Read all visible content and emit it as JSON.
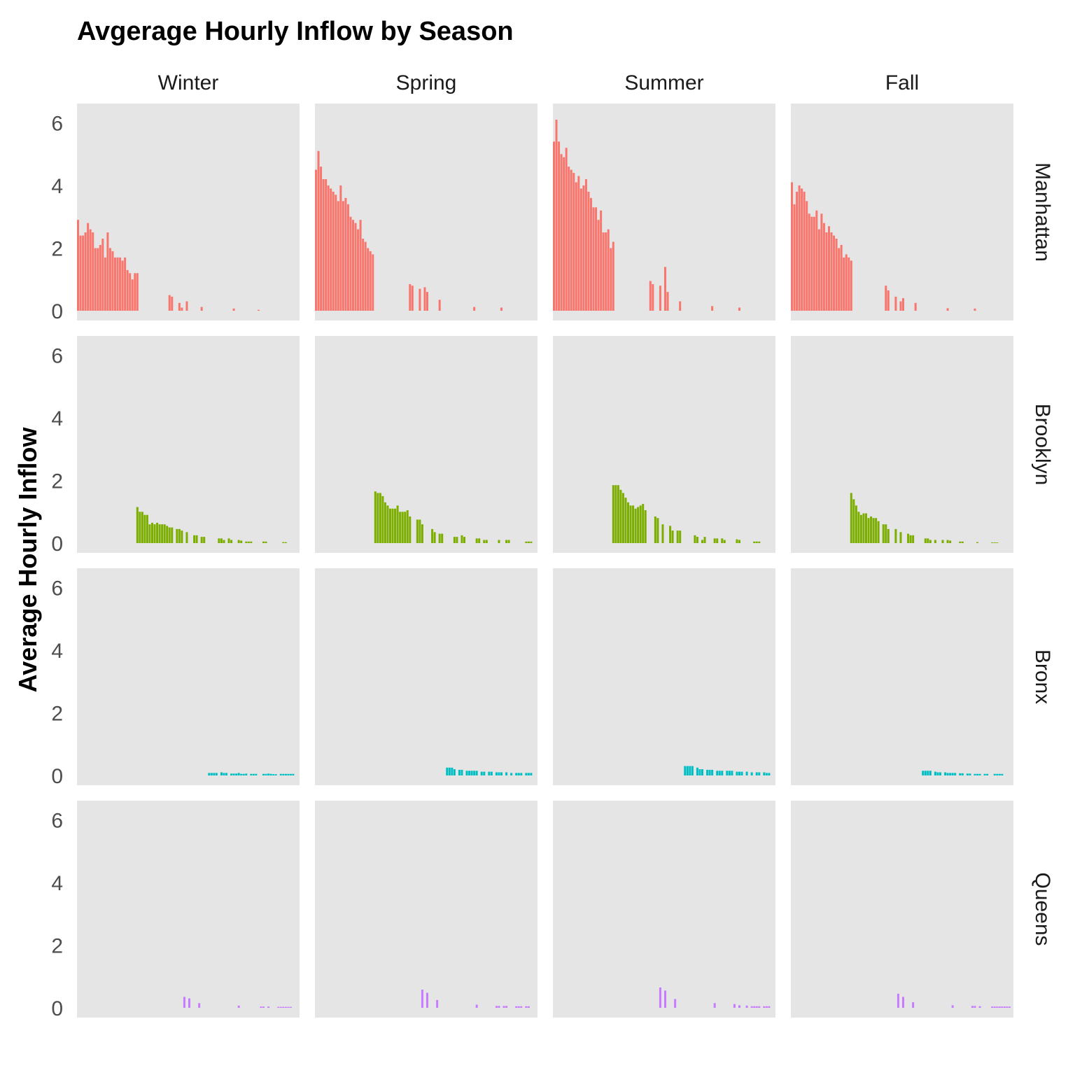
{
  "chart_data": {
    "type": "bar",
    "title": "Avgerage Hourly Inflow by Season",
    "xlabel": "",
    "ylabel": "Average Hourly Inflow",
    "ylim": [
      0,
      6.3
    ],
    "yticks": [
      0,
      2,
      4,
      6
    ],
    "grid": false,
    "legend": "none",
    "column_facets": [
      "Winter",
      "Spring",
      "Summer",
      "Fall"
    ],
    "row_facets": [
      "Manhattan",
      "Brooklyn",
      "Bronx",
      "Queens"
    ],
    "colors": {
      "Manhattan": "#F8766D",
      "Brooklyn": "#7CAE00",
      "Bronx": "#00BFC4",
      "Queens": "#C77CFF",
      "panel_background": "#E5E5E5"
    },
    "x_slots": 90,
    "panels": [
      {
        "row": "Manhattan",
        "col": "Winter",
        "start": 0,
        "values": [
          2.9,
          2.4,
          2.4,
          2.5,
          2.8,
          2.6,
          2.5,
          2.0,
          2.0,
          2.1,
          2.3,
          1.7,
          2.5,
          2.0,
          1.9,
          1.7,
          1.7,
          1.7,
          1.6,
          1.7,
          1.3,
          1.2,
          1.0,
          1.2,
          1.2,
          0,
          0,
          0,
          0,
          0,
          0,
          0,
          0,
          0,
          0,
          0,
          0,
          0.5,
          0.45,
          0,
          0,
          0.25,
          0.1,
          0,
          0.3,
          0,
          0,
          0,
          0,
          0,
          0.12,
          0,
          0,
          0,
          0,
          0,
          0,
          0,
          0,
          0,
          0,
          0,
          0,
          0.07,
          0,
          0,
          0,
          0,
          0,
          0,
          0,
          0,
          0,
          0.03
        ]
      },
      {
        "row": "Manhattan",
        "col": "Spring",
        "start": 0,
        "values": [
          4.5,
          5.1,
          4.6,
          4.2,
          4.2,
          4.0,
          3.9,
          3.8,
          3.7,
          3.5,
          4.0,
          3.5,
          3.6,
          3.4,
          3.0,
          2.9,
          2.8,
          2.6,
          2.9,
          2.3,
          2.2,
          2.0,
          1.9,
          1.8,
          0,
          0,
          0,
          0,
          0,
          0,
          0,
          0,
          0,
          0,
          0,
          0,
          0,
          0,
          0.85,
          0.8,
          0,
          0,
          0.7,
          0,
          0.75,
          0.6,
          0,
          0,
          0,
          0,
          0.35,
          0,
          0,
          0,
          0,
          0,
          0,
          0,
          0,
          0,
          0,
          0,
          0,
          0,
          0.12,
          0,
          0,
          0,
          0,
          0,
          0,
          0,
          0,
          0,
          0,
          0.1
        ]
      },
      {
        "row": "Manhattan",
        "col": "Summer",
        "start": 0,
        "values": [
          5.4,
          6.1,
          5.4,
          5.0,
          4.9,
          5.2,
          4.6,
          4.5,
          4.4,
          4.1,
          4.3,
          3.9,
          4.0,
          4.2,
          3.8,
          3.6,
          3.3,
          3.3,
          2.9,
          3.2,
          2.5,
          2.5,
          2.6,
          2.0,
          2.2,
          0,
          0,
          0,
          0,
          0,
          0,
          0,
          0,
          0,
          0,
          0,
          0,
          0,
          0,
          0.95,
          0.85,
          0,
          0,
          0.8,
          0,
          1.4,
          0.6,
          0,
          0,
          0,
          0,
          0.3,
          0,
          0,
          0,
          0,
          0,
          0,
          0,
          0,
          0,
          0,
          0,
          0,
          0.15,
          0,
          0,
          0,
          0,
          0,
          0,
          0,
          0,
          0,
          0,
          0.1
        ]
      },
      {
        "row": "Manhattan",
        "col": "Fall",
        "start": 0,
        "values": [
          4.1,
          3.4,
          3.8,
          4.0,
          3.9,
          3.8,
          3.5,
          3.1,
          3.0,
          3.0,
          3.2,
          2.6,
          3.1,
          2.8,
          2.5,
          2.7,
          2.5,
          2.4,
          2.3,
          2.0,
          2.1,
          1.7,
          1.8,
          1.7,
          1.6,
          0,
          0,
          0,
          0,
          0,
          0,
          0,
          0,
          0,
          0,
          0,
          0,
          0,
          0.8,
          0.65,
          0,
          0,
          0.45,
          0,
          0.3,
          0.4,
          0,
          0,
          0,
          0,
          0.25,
          0,
          0,
          0,
          0,
          0,
          0,
          0,
          0,
          0,
          0,
          0,
          0,
          0.08,
          0,
          0,
          0,
          0,
          0,
          0,
          0,
          0,
          0,
          0,
          0.07
        ]
      },
      {
        "row": "Brooklyn",
        "col": "Winter",
        "start": 24,
        "values": [
          1.15,
          1.0,
          1.0,
          0.9,
          0.9,
          0.6,
          0.65,
          0.6,
          0.65,
          0.6,
          0.6,
          0.6,
          0.55,
          0.5,
          0.5,
          0,
          0.45,
          0.45,
          0.4,
          0,
          0.35,
          0,
          0,
          0.25,
          0.25,
          0,
          0.2,
          0.2,
          0,
          0,
          0,
          0,
          0,
          0.15,
          0.15,
          0.1,
          0,
          0.15,
          0.1,
          0,
          0,
          0.1,
          0.08,
          0,
          0.05,
          0.05,
          0.05,
          0,
          0,
          0,
          0,
          0.05,
          0.05,
          0,
          0,
          0,
          0,
          0,
          0,
          0.03,
          0.03,
          0,
          0,
          0,
          0,
          0
        ]
      },
      {
        "row": "Brooklyn",
        "col": "Spring",
        "start": 24,
        "values": [
          1.65,
          1.6,
          1.6,
          1.5,
          1.3,
          1.2,
          1.1,
          1.1,
          1.1,
          1.2,
          1.0,
          1.0,
          1.0,
          1.05,
          0.85,
          0,
          0,
          0.75,
          0.75,
          0.6,
          0,
          0,
          0,
          0.45,
          0.35,
          0,
          0.3,
          0.3,
          0,
          0,
          0,
          0,
          0.2,
          0.2,
          0,
          0.25,
          0.2,
          0,
          0,
          0,
          0,
          0.15,
          0.15,
          0,
          0.1,
          0.1,
          0,
          0,
          0,
          0,
          0.1,
          0,
          0,
          0.1,
          0.1,
          0,
          0,
          0,
          0,
          0,
          0,
          0.05,
          0.05,
          0.05,
          0,
          0,
          0
        ]
      },
      {
        "row": "Brooklyn",
        "col": "Summer",
        "start": 24,
        "values": [
          1.85,
          1.85,
          1.85,
          1.7,
          1.6,
          1.45,
          1.3,
          1.2,
          1.2,
          1.1,
          1.15,
          1.2,
          1.25,
          1.05,
          0,
          0,
          0,
          0.85,
          0.8,
          0,
          0.6,
          0,
          0,
          0.55,
          0.4,
          0,
          0.4,
          0.4,
          0,
          0,
          0,
          0,
          0,
          0.25,
          0.2,
          0,
          0.1,
          0.2,
          0,
          0,
          0,
          0.15,
          0.15,
          0,
          0.15,
          0.1,
          0,
          0,
          0,
          0,
          0.12,
          0.1,
          0,
          0,
          0,
          0,
          0,
          0.05,
          0.05,
          0.05,
          0,
          0,
          0,
          0,
          0
        ]
      },
      {
        "row": "Brooklyn",
        "col": "Fall",
        "start": 24,
        "values": [
          1.6,
          1.4,
          1.2,
          1.0,
          0.9,
          0.95,
          0.95,
          0.8,
          0.85,
          0.8,
          0.8,
          0.7,
          0,
          0.6,
          0.6,
          0.45,
          0,
          0,
          0.45,
          0,
          0.35,
          0,
          0,
          0.3,
          0.25,
          0.25,
          0,
          0,
          0,
          0,
          0.15,
          0.15,
          0.1,
          0,
          0.1,
          0,
          0,
          0.1,
          0,
          0.1,
          0.08,
          0,
          0,
          0,
          0.05,
          0.05,
          0,
          0,
          0,
          0,
          0,
          0.03,
          0,
          0,
          0,
          0,
          0,
          0.02,
          0.02,
          0.02,
          0,
          0,
          0,
          0
        ]
      },
      {
        "row": "Bronx",
        "col": "Winter",
        "start": 53,
        "values": [
          0.08,
          0.08,
          0.08,
          0.08,
          0,
          0.1,
          0.08,
          0.08,
          0,
          0.06,
          0.06,
          0.06,
          0.08,
          0.05,
          0.05,
          0.06,
          0,
          0.05,
          0.05,
          0.05,
          0,
          0,
          0.05,
          0.05,
          0.06,
          0.05,
          0.04,
          0.04,
          0,
          0.05,
          0.05,
          0.05,
          0.05,
          0.05,
          0.05
        ]
      },
      {
        "row": "Bronx",
        "col": "Spring",
        "start": 53,
        "values": [
          0.25,
          0.25,
          0.25,
          0.2,
          0,
          0.18,
          0.18,
          0,
          0.15,
          0.15,
          0.15,
          0.15,
          0.15,
          0,
          0.12,
          0.12,
          0,
          0.12,
          0.12,
          0,
          0.1,
          0.1,
          0.1,
          0,
          0.1,
          0,
          0.08,
          0,
          0.08,
          0.08,
          0.08,
          0,
          0.08,
          0.08,
          0.08
        ]
      },
      {
        "row": "Bronx",
        "col": "Summer",
        "start": 53,
        "values": [
          0.3,
          0.3,
          0.3,
          0.3,
          0,
          0.25,
          0.2,
          0.2,
          0,
          0.18,
          0.18,
          0.18,
          0,
          0.15,
          0.15,
          0.15,
          0,
          0.15,
          0.15,
          0.15,
          0,
          0.12,
          0.12,
          0.12,
          0,
          0.12,
          0,
          0.1,
          0,
          0.1,
          0.1,
          0,
          0.1,
          0.08,
          0.08
        ]
      },
      {
        "row": "Bronx",
        "col": "Fall",
        "start": 53,
        "values": [
          0.15,
          0.15,
          0.15,
          0.15,
          0,
          0.12,
          0.1,
          0.1,
          0,
          0.1,
          0.08,
          0.08,
          0.08,
          0.08,
          0,
          0.07,
          0.07,
          0,
          0.06,
          0.06,
          0,
          0.05,
          0.05,
          0.05,
          0,
          0.05,
          0.05,
          0,
          0,
          0.05,
          0.05,
          0.05,
          0.05
        ]
      },
      {
        "row": "Queens",
        "col": "Winter",
        "start": 43,
        "values": [
          0.35,
          0,
          0.3,
          0,
          0,
          0,
          0.15,
          0,
          0,
          0,
          0,
          0,
          0,
          0,
          0,
          0,
          0,
          0,
          0,
          0,
          0,
          0,
          0.07,
          0,
          0,
          0,
          0,
          0,
          0,
          0,
          0,
          0.04,
          0.04,
          0,
          0.04,
          0,
          0,
          0,
          0.03,
          0.03,
          0.03,
          0.03,
          0.03,
          0.03
        ]
      },
      {
        "row": "Queens",
        "col": "Spring",
        "start": 43,
        "values": [
          0.58,
          0,
          0.48,
          0,
          0,
          0,
          0.25,
          0,
          0,
          0,
          0,
          0,
          0,
          0,
          0,
          0,
          0,
          0,
          0,
          0,
          0,
          0,
          0.1,
          0,
          0,
          0,
          0,
          0,
          0,
          0,
          0.06,
          0.06,
          0,
          0.06,
          0.06,
          0,
          0,
          0,
          0.05,
          0.05,
          0.05,
          0,
          0.05,
          0.05
        ]
      },
      {
        "row": "Queens",
        "col": "Summer",
        "start": 43,
        "values": [
          0.65,
          0,
          0.55,
          0,
          0,
          0,
          0.28,
          0,
          0,
          0,
          0,
          0,
          0,
          0,
          0,
          0,
          0,
          0,
          0,
          0,
          0,
          0,
          0.15,
          0,
          0,
          0,
          0,
          0,
          0,
          0,
          0.12,
          0,
          0.08,
          0,
          0,
          0.07,
          0,
          0.05,
          0.05,
          0.05,
          0.05,
          0,
          0.05,
          0.05,
          0.05
        ]
      },
      {
        "row": "Queens",
        "col": "Fall",
        "start": 43,
        "values": [
          0.45,
          0,
          0.35,
          0,
          0,
          0,
          0.18,
          0,
          0,
          0,
          0,
          0,
          0,
          0,
          0,
          0,
          0,
          0,
          0,
          0,
          0,
          0,
          0.08,
          0,
          0,
          0,
          0,
          0,
          0,
          0,
          0.06,
          0.06,
          0,
          0.05,
          0,
          0,
          0,
          0,
          0.04,
          0.04,
          0.04,
          0.04,
          0.04,
          0.04,
          0.04,
          0.04
        ]
      }
    ]
  }
}
